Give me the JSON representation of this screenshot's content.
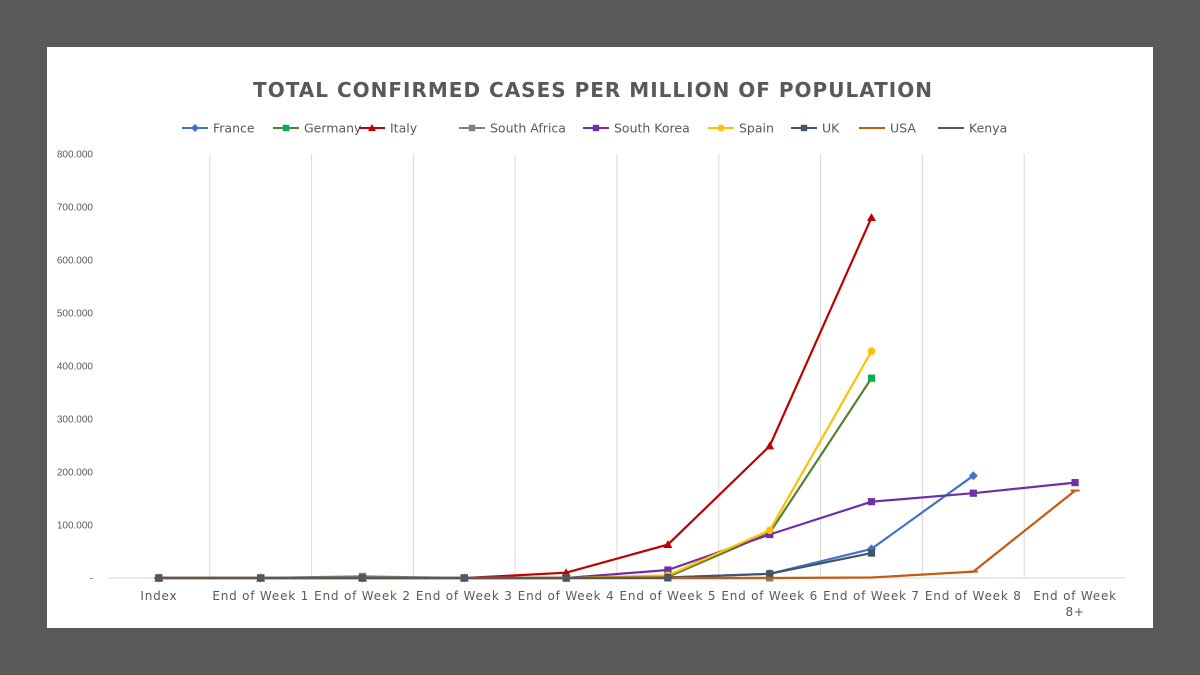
{
  "chart_data": {
    "type": "line",
    "title": "TOTAL CONFIRMED CASES PER MILLION OF POPULATION",
    "categories": [
      "Index",
      "End of Week 1",
      "End of Week 2",
      "End of Week 3",
      "End of Week 4",
      "End of Week 5",
      "End of Week 6",
      "End of Week 7",
      "End of Week 8",
      "End of Week 8+"
    ],
    "y_tick_labels": [
      "-",
      "100.000",
      "200.000",
      "300.000",
      "400.000",
      "500.000",
      "600.000",
      "700.000",
      "800.000"
    ],
    "ylim": [
      0,
      800
    ],
    "ytick_step": 100,
    "grid": "vertical",
    "legend_position": "top",
    "series": [
      {
        "name": "France",
        "color": "#4472C4",
        "marker": "diamond",
        "values": [
          0,
          0,
          0,
          0,
          0,
          1,
          8,
          55,
          193,
          null
        ]
      },
      {
        "name": "Germany",
        "color": "#548235",
        "marker_color": "#00B050",
        "marker": "square",
        "values": [
          0,
          0,
          0,
          0,
          0,
          2,
          85,
          377,
          null,
          null
        ]
      },
      {
        "name": "Italy",
        "color": "#C00000",
        "marker": "triangle",
        "values": [
          0,
          0,
          0,
          0,
          10,
          63,
          249,
          680,
          null,
          null
        ]
      },
      {
        "name": "South Africa",
        "color": "#7F7F7F",
        "marker": "square",
        "values": [
          0,
          0,
          3,
          0,
          0,
          0,
          0,
          null,
          null,
          null
        ]
      },
      {
        "name": "South Korea",
        "color": "#7030A0",
        "marker": "square",
        "values": [
          0,
          0,
          0,
          0,
          0,
          15,
          82,
          144,
          160,
          180
        ]
      },
      {
        "name": "Spain",
        "color": "#FFC000",
        "marker": "circle",
        "values": [
          0,
          0,
          0,
          0,
          0,
          5,
          90,
          428,
          null,
          null
        ]
      },
      {
        "name": "UK",
        "color": "#44546A",
        "marker": "square",
        "values": [
          0,
          0,
          0,
          0,
          0,
          1,
          8,
          47,
          null,
          null
        ]
      },
      {
        "name": "USA",
        "color": "#C55A11",
        "marker": "dash",
        "values": [
          0,
          0,
          0,
          0,
          0,
          0,
          0,
          1,
          12,
          165
        ]
      },
      {
        "name": "Kenya",
        "color": "#595959",
        "marker": "dash",
        "values": [
          0,
          0,
          0,
          0,
          0,
          0,
          null,
          null,
          null,
          null
        ]
      }
    ]
  }
}
